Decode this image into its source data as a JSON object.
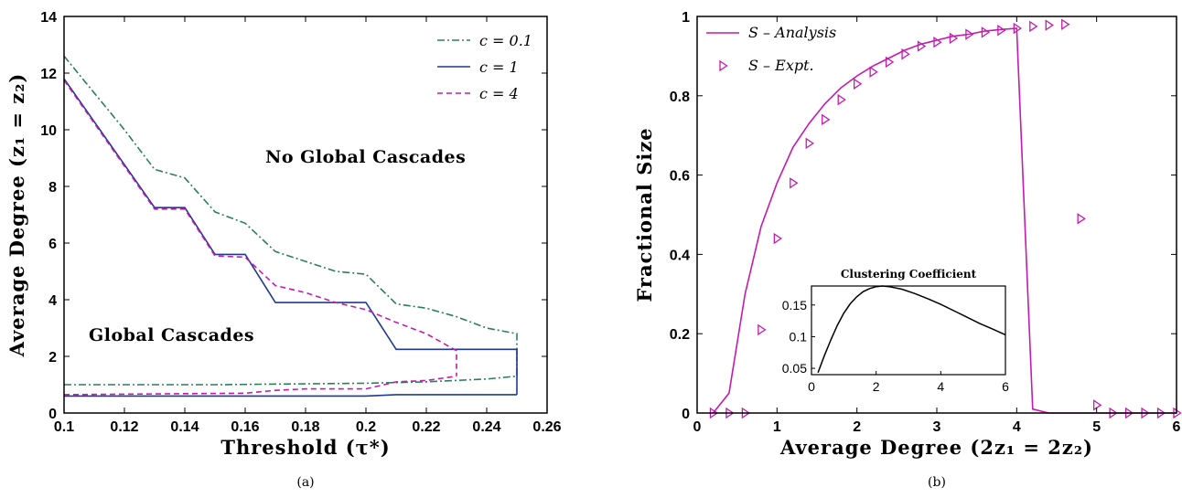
{
  "chart_data": [
    {
      "type": "line",
      "panel_label": "(a)",
      "xlabel": "Threshold (τ*)",
      "ylabel": "Average Degree (z₁ = z₂)",
      "xlim": [
        0.1,
        0.26
      ],
      "ylim": [
        0,
        14
      ],
      "xticks": [
        "0.1",
        "0.12",
        "0.14",
        "0.16",
        "0.18",
        "0.2",
        "0.22",
        "0.24",
        "0.26"
      ],
      "yticks": [
        "0",
        "2",
        "4",
        "6",
        "8",
        "10",
        "12",
        "14"
      ],
      "annotations": [
        "No Global Cascades",
        "Global Cascades"
      ],
      "legend_position": "top-right",
      "grid": false,
      "series": [
        {
          "name": "c = 0.1",
          "color": "#2e7d5b",
          "style": "dashdot",
          "upper": [
            [
              0.1,
              12.6
            ],
            [
              0.11,
              11.3
            ],
            [
              0.12,
              10.0
            ],
            [
              0.13,
              8.6
            ],
            [
              0.14,
              8.3
            ],
            [
              0.15,
              7.1
            ],
            [
              0.16,
              6.7
            ],
            [
              0.17,
              5.7
            ],
            [
              0.18,
              5.35
            ],
            [
              0.19,
              5.0
            ],
            [
              0.2,
              4.9
            ],
            [
              0.21,
              3.85
            ],
            [
              0.22,
              3.7
            ],
            [
              0.23,
              3.4
            ],
            [
              0.24,
              3.0
            ],
            [
              0.25,
              2.8
            ],
            [
              0.25,
              2.0
            ]
          ],
          "lower": [
            [
              0.1,
              1.0
            ],
            [
              0.15,
              1.0
            ],
            [
              0.2,
              1.05
            ],
            [
              0.22,
              1.1
            ],
            [
              0.24,
              1.2
            ],
            [
              0.25,
              1.3
            ],
            [
              0.25,
              2.0
            ]
          ]
        },
        {
          "name": "c = 1",
          "color": "#1f3a93",
          "style": "solid",
          "upper": [
            [
              0.1,
              11.8
            ],
            [
              0.13,
              7.25
            ],
            [
              0.14,
              7.25
            ],
            [
              0.15,
              5.6
            ],
            [
              0.16,
              5.6
            ],
            [
              0.17,
              3.9
            ],
            [
              0.2,
              3.9
            ],
            [
              0.21,
              2.25
            ],
            [
              0.25,
              2.25
            ],
            [
              0.25,
              0.65
            ]
          ],
          "lower": [
            [
              0.1,
              0.6
            ],
            [
              0.17,
              0.6
            ],
            [
              0.2,
              0.6
            ],
            [
              0.21,
              0.65
            ],
            [
              0.25,
              0.65
            ]
          ]
        },
        {
          "name": "c = 4",
          "color": "#c41ab0",
          "style": "dashed",
          "upper": [
            [
              0.1,
              11.75
            ],
            [
              0.13,
              7.2
            ],
            [
              0.14,
              7.2
            ],
            [
              0.15,
              5.55
            ],
            [
              0.16,
              5.5
            ],
            [
              0.17,
              4.5
            ],
            [
              0.18,
              4.25
            ],
            [
              0.19,
              3.9
            ],
            [
              0.2,
              3.65
            ],
            [
              0.21,
              3.2
            ],
            [
              0.22,
              2.8
            ],
            [
              0.23,
              2.2
            ],
            [
              0.23,
              1.3
            ]
          ],
          "lower": [
            [
              0.1,
              0.65
            ],
            [
              0.16,
              0.7
            ],
            [
              0.17,
              0.8
            ],
            [
              0.18,
              0.85
            ],
            [
              0.19,
              0.85
            ],
            [
              0.2,
              0.85
            ],
            [
              0.21,
              1.1
            ],
            [
              0.22,
              1.15
            ],
            [
              0.23,
              1.3
            ]
          ]
        }
      ]
    },
    {
      "type": "line",
      "panel_label": "(b)",
      "xlabel": "Average Degree (2z₁ = 2z₂)",
      "ylabel": "Fractional Size",
      "xlim": [
        0,
        6
      ],
      "ylim": [
        0,
        1
      ],
      "xticks": [
        "0",
        "1",
        "2",
        "3",
        "4",
        "5",
        "6"
      ],
      "yticks": [
        "0",
        "0.2",
        "0.4",
        "0.6",
        "0.8",
        "1"
      ],
      "legend_position": "top-left",
      "grid": false,
      "series": [
        {
          "name": "S – Analysis",
          "color": "#c41ab0",
          "style": "solid",
          "points": [
            [
              0.2,
              0.0
            ],
            [
              0.4,
              0.05
            ],
            [
              0.6,
              0.3
            ],
            [
              0.8,
              0.47
            ],
            [
              1.0,
              0.58
            ],
            [
              1.2,
              0.67
            ],
            [
              1.4,
              0.73
            ],
            [
              1.6,
              0.78
            ],
            [
              1.8,
              0.82
            ],
            [
              2.0,
              0.85
            ],
            [
              2.2,
              0.875
            ],
            [
              2.4,
              0.895
            ],
            [
              2.6,
              0.915
            ],
            [
              2.8,
              0.93
            ],
            [
              3.0,
              0.94
            ],
            [
              3.2,
              0.95
            ],
            [
              3.4,
              0.955
            ],
            [
              3.6,
              0.963
            ],
            [
              3.8,
              0.967
            ],
            [
              4.0,
              0.97
            ],
            [
              4.2,
              0.01
            ],
            [
              4.4,
              0.0
            ],
            [
              6.0,
              0.0
            ]
          ]
        },
        {
          "name": "S – Expt.",
          "color": "#c41ab0",
          "style": "marker-triangle-right",
          "points": [
            [
              0.2,
              0.0
            ],
            [
              0.4,
              0.0
            ],
            [
              0.6,
              0.0
            ],
            [
              0.8,
              0.21
            ],
            [
              1.0,
              0.44
            ],
            [
              1.2,
              0.58
            ],
            [
              1.4,
              0.68
            ],
            [
              1.6,
              0.74
            ],
            [
              1.8,
              0.79
            ],
            [
              2.0,
              0.83
            ],
            [
              2.2,
              0.86
            ],
            [
              2.4,
              0.885
            ],
            [
              2.6,
              0.905
            ],
            [
              2.8,
              0.925
            ],
            [
              3.0,
              0.935
            ],
            [
              3.2,
              0.945
            ],
            [
              3.4,
              0.955
            ],
            [
              3.6,
              0.96
            ],
            [
              3.8,
              0.965
            ],
            [
              4.0,
              0.97
            ],
            [
              4.2,
              0.975
            ],
            [
              4.4,
              0.978
            ],
            [
              4.6,
              0.98
            ],
            [
              4.8,
              0.49
            ],
            [
              5.0,
              0.02
            ],
            [
              5.2,
              0.0
            ],
            [
              5.4,
              0.0
            ],
            [
              5.6,
              0.0
            ],
            [
              5.8,
              0.0
            ],
            [
              6.0,
              0.0
            ]
          ]
        }
      ],
      "inset": {
        "title": "Clustering Coefficient",
        "xlim": [
          0,
          6
        ],
        "ylim": [
          0.04,
          0.18
        ],
        "xticks": [
          "0",
          "2",
          "4",
          "6"
        ],
        "yticks": [
          "0.05",
          "0.1",
          "0.15"
        ],
        "series": [
          {
            "color": "#000000",
            "points": [
              [
                0.2,
                0.043
              ],
              [
                0.4,
                0.07
              ],
              [
                0.6,
                0.095
              ],
              [
                0.8,
                0.118
              ],
              [
                1.0,
                0.137
              ],
              [
                1.2,
                0.152
              ],
              [
                1.4,
                0.163
              ],
              [
                1.6,
                0.171
              ],
              [
                1.8,
                0.176
              ],
              [
                2.0,
                0.179
              ],
              [
                2.2,
                0.18
              ],
              [
                2.4,
                0.179
              ],
              [
                2.8,
                0.175
              ],
              [
                3.2,
                0.168
              ],
              [
                3.6,
                0.16
              ],
              [
                4.0,
                0.151
              ],
              [
                4.4,
                0.141
              ],
              [
                4.8,
                0.131
              ],
              [
                5.2,
                0.121
              ],
              [
                5.6,
                0.112
              ],
              [
                6.0,
                0.103
              ]
            ]
          }
        ]
      }
    }
  ]
}
